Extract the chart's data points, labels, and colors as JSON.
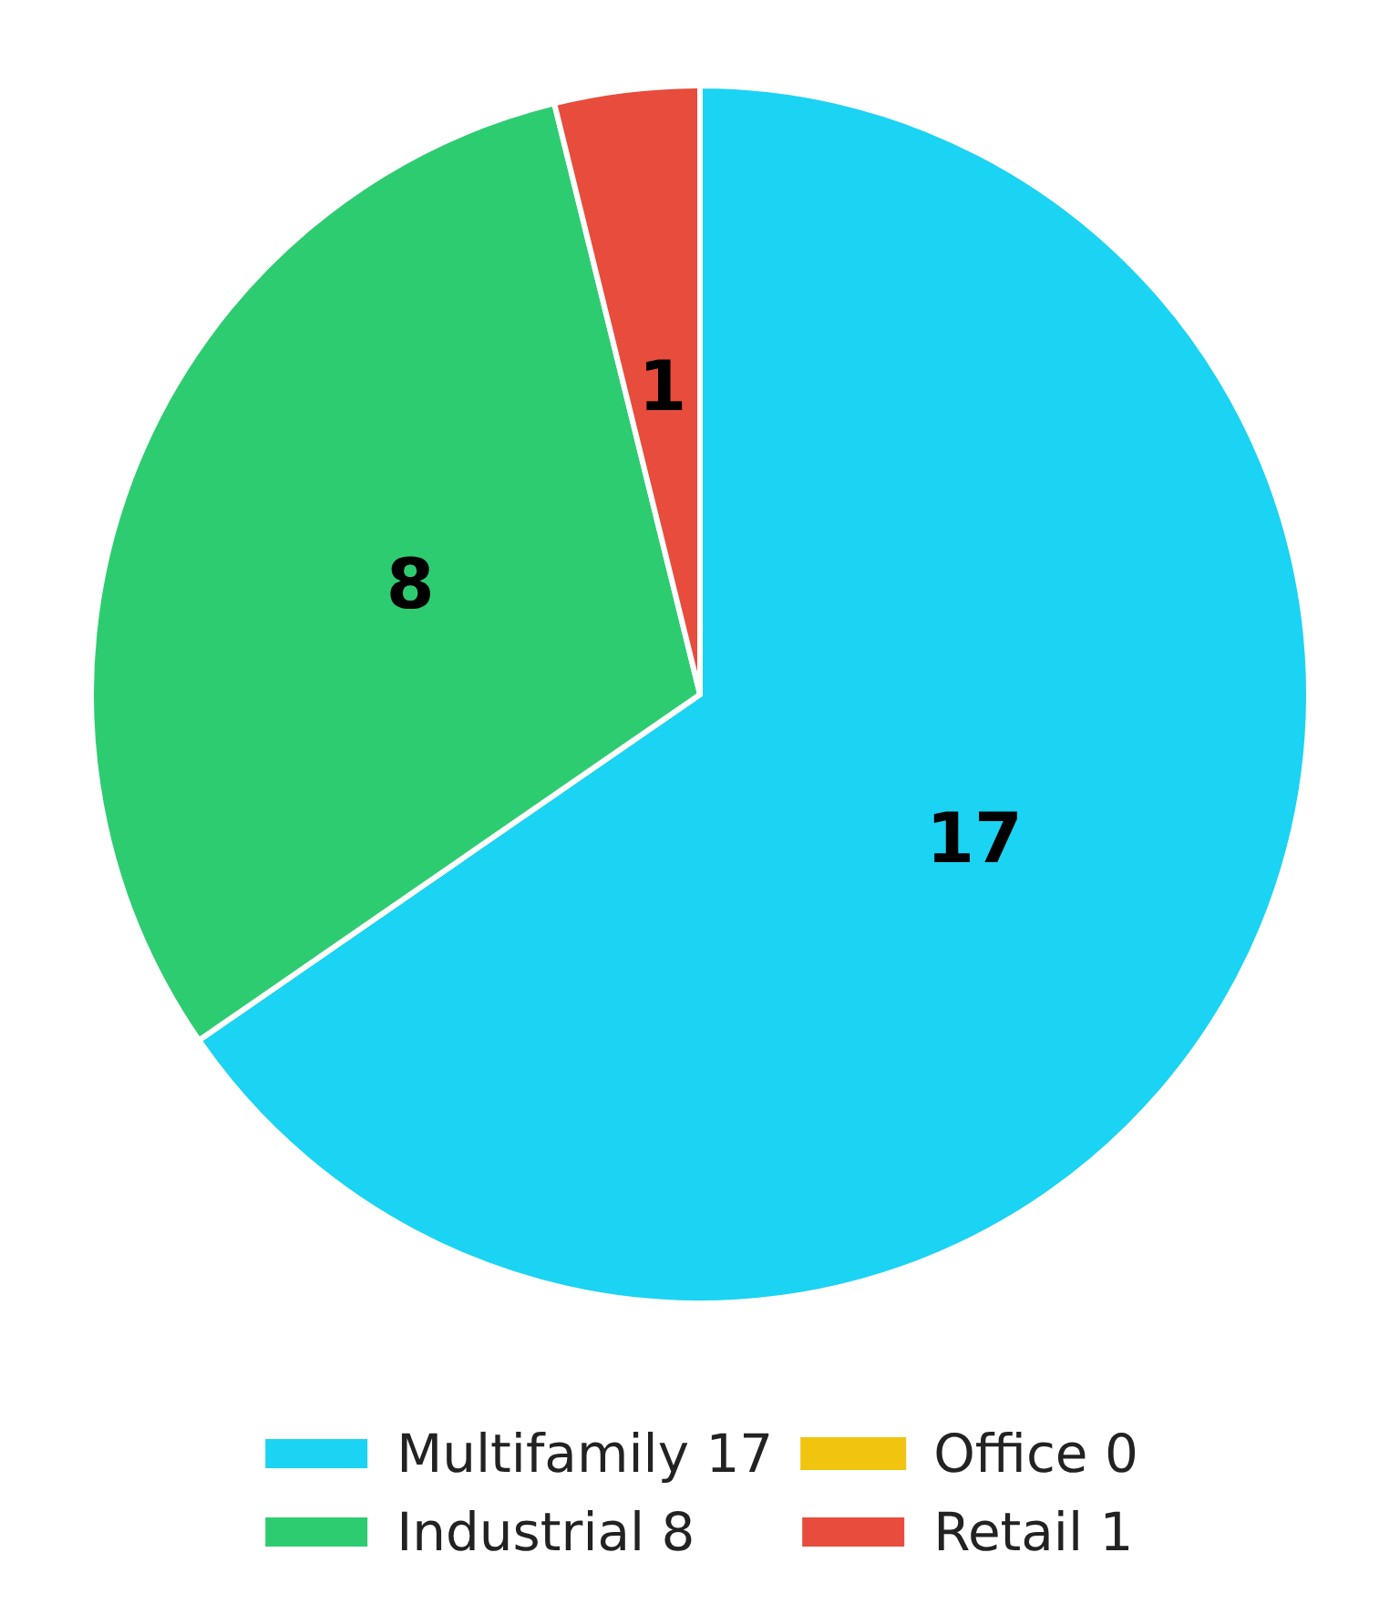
{
  "chart_data": {
    "type": "pie",
    "categories": [
      "Multifamily 17",
      "Industrial 8",
      "Office 0",
      "Retail 1"
    ],
    "values": [
      17,
      8,
      0,
      1
    ],
    "colors": [
      "#1bd3f3",
      "#2ecc71",
      "#f1c40f",
      "#e74c3c"
    ],
    "value_labels": [
      "17",
      "8",
      null,
      "1"
    ],
    "legend": "bottom"
  }
}
